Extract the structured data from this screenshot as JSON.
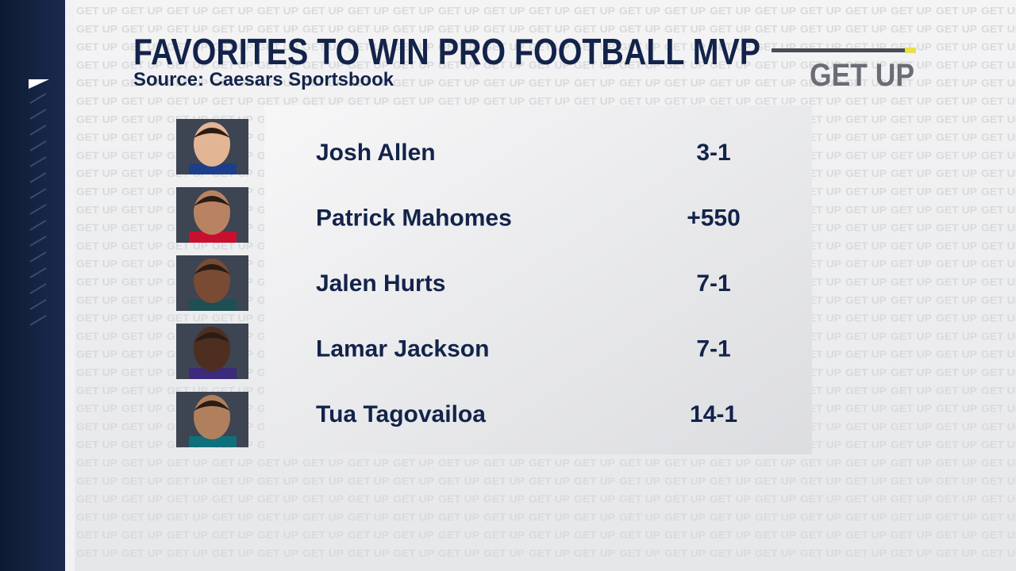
{
  "header": {
    "title": "FAVORITES TO WIN PRO FOOTBALL MVP",
    "source": "Source: Caesars Sportsbook"
  },
  "logo": "GET UP",
  "rows": [
    {
      "name": "Josh Allen",
      "odds": "3-1"
    },
    {
      "name": "Patrick Mahomes",
      "odds": "+550"
    },
    {
      "name": "Jalen Hurts",
      "odds": "7-1"
    },
    {
      "name": "Lamar Jackson",
      "odds": "7-1"
    },
    {
      "name": "Tua Tagovailoa",
      "odds": "14-1"
    }
  ]
}
